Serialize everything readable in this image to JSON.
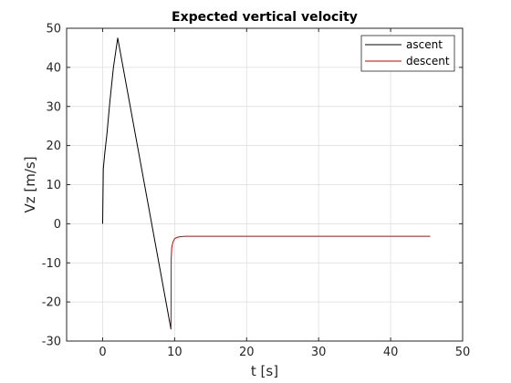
{
  "chart_data": {
    "type": "line",
    "title": "Expected vertical velocity",
    "xlabel": "t [s]",
    "ylabel": "Vz [m/s]",
    "xlim": [
      -5,
      50
    ],
    "ylim": [
      -30,
      50
    ],
    "xticks": [
      0,
      10,
      20,
      30,
      40,
      50
    ],
    "yticks": [
      -30,
      -20,
      -10,
      0,
      10,
      20,
      30,
      40,
      50
    ],
    "grid": true,
    "legend_position": "top-right",
    "series": [
      {
        "name": "ascent",
        "color": "#000000",
        "x": [
          0,
          0.05,
          0.1,
          0.3,
          0.6,
          1.0,
          1.5,
          2.1,
          9.5
        ],
        "y": [
          0,
          6,
          14,
          18,
          23,
          31,
          40,
          47.5,
          -27
        ]
      },
      {
        "name": "descent",
        "color": "#cc0000",
        "x": [
          9.5,
          9.52,
          9.6,
          9.8,
          10.0,
          10.3,
          10.8,
          11.5,
          45.5
        ],
        "y": [
          -27,
          -9,
          -6,
          -4.5,
          -3.8,
          -3.5,
          -3.3,
          -3.2,
          -3.2
        ]
      }
    ]
  }
}
